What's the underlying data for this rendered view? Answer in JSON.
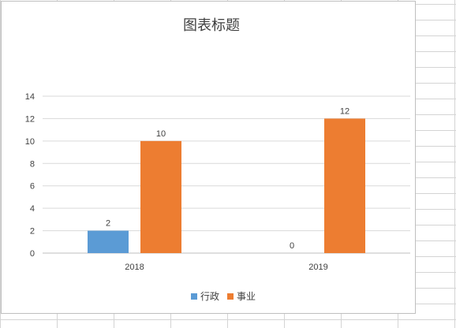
{
  "chart_data": {
    "type": "bar",
    "title": "图表标题",
    "categories": [
      "2018",
      "2019"
    ],
    "series": [
      {
        "name": "行政",
        "values": [
          2,
          0
        ],
        "color": "#5B9BD5"
      },
      {
        "name": "事业",
        "values": [
          10,
          12
        ],
        "color": "#ED7D31"
      }
    ],
    "ylim": [
      0,
      14
    ],
    "yticks": [
      0,
      2,
      4,
      6,
      8,
      10,
      12,
      14
    ],
    "grid": true,
    "legend_position": "bottom",
    "data_labels": true
  }
}
